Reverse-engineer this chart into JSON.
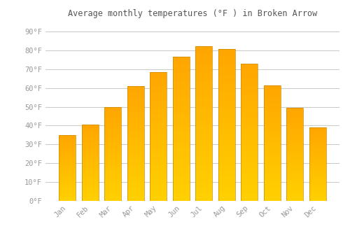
{
  "title": "Average monthly temperatures (°F ) in Broken Arrow",
  "months": [
    "Jan",
    "Feb",
    "Mar",
    "Apr",
    "May",
    "Jun",
    "Jul",
    "Aug",
    "Sep",
    "Oct",
    "Nov",
    "Dec"
  ],
  "values": [
    35,
    40.5,
    50,
    61,
    68.5,
    76.5,
    82,
    80.5,
    73,
    61.5,
    49.5,
    39
  ],
  "bar_color_center": "#FFD700",
  "bar_color_edge": "#FFA500",
  "bar_edge_color": "#CC8800",
  "background_color": "#ffffff",
  "plot_bg_color": "#ffffff",
  "grid_color": "#cccccc",
  "tick_label_color": "#999999",
  "title_color": "#555555",
  "ylim": [
    0,
    95
  ],
  "yticks": [
    0,
    10,
    20,
    30,
    40,
    50,
    60,
    70,
    80,
    90
  ],
  "ytick_labels": [
    "0°F",
    "10°F",
    "20°F",
    "30°F",
    "40°F",
    "50°F",
    "60°F",
    "70°F",
    "80°F",
    "90°F"
  ]
}
